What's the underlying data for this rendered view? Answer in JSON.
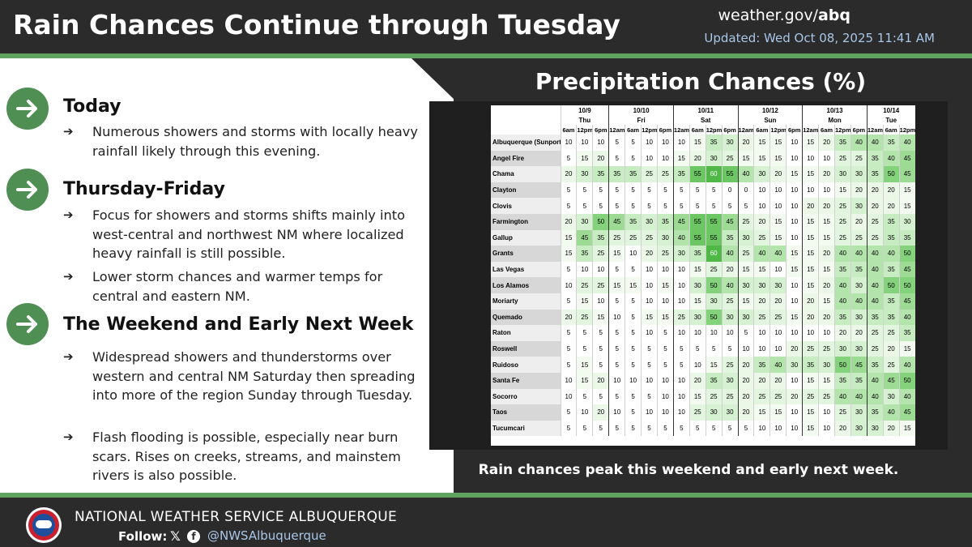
{
  "header": {
    "title": "Rain Chances Continue through Tuesday",
    "site_prefix": "weather.gov/",
    "site_bold": "abq",
    "updated": "Updated: Wed Oct 08, 2025 11:41 AM"
  },
  "sections": [
    {
      "title": "Today",
      "bullets": [
        "Numerous showers and storms with locally heavy rainfall likely through this evening."
      ]
    },
    {
      "title": "Thursday-Friday",
      "bullets": [
        "Focus for showers and storms shifts mainly into west-central and northwest NM where localized heavy rainfall is still possible.",
        "Lower storm chances and warmer temps for central and eastern NM."
      ]
    },
    {
      "title": "The Weekend and Early Next Week",
      "bullets": [
        "Widespread showers and thunderstorms over western and central NM Saturday then spreading into more of the region Sunday through Tuesday.",
        "Flash flooding is possible, especially near burn scars. Rises on creeks, streams, and mainstem rivers is also possible."
      ]
    }
  ],
  "bullet_arrow": "➔",
  "chart": {
    "title": "Precipitation Chances (%)",
    "caption": "Rain chances peak this weekend and early next week."
  },
  "chart_data": {
    "type": "table",
    "days": [
      {
        "date": "10/9",
        "day": "Thu",
        "times": [
          "6am",
          "12pm",
          "6pm"
        ]
      },
      {
        "date": "10/10",
        "day": "Fri",
        "times": [
          "12am",
          "6am",
          "12pm",
          "6pm"
        ]
      },
      {
        "date": "10/11",
        "day": "Sat",
        "times": [
          "12am",
          "6am",
          "12pm",
          "6pm"
        ]
      },
      {
        "date": "10/12",
        "day": "Sun",
        "times": [
          "12am",
          "6am",
          "12pm",
          "6pm"
        ]
      },
      {
        "date": "10/13",
        "day": "Mon",
        "times": [
          "12am",
          "6am",
          "12pm",
          "6pm"
        ]
      },
      {
        "date": "10/14",
        "day": "Tue",
        "times": [
          "12am",
          "6am",
          "12pm"
        ]
      }
    ],
    "rows": [
      {
        "location": "Albuquerque (Sunport)",
        "values": [
          10,
          10,
          10,
          5,
          5,
          10,
          10,
          10,
          15,
          35,
          30,
          20,
          15,
          15,
          10,
          15,
          20,
          35,
          40,
          40,
          35,
          40
        ]
      },
      {
        "location": "Angel Fire",
        "values": [
          5,
          15,
          20,
          5,
          5,
          10,
          10,
          15,
          20,
          30,
          25,
          15,
          15,
          15,
          10,
          10,
          10,
          25,
          25,
          35,
          40,
          45
        ]
      },
      {
        "location": "Chama",
        "values": [
          20,
          30,
          35,
          35,
          35,
          25,
          25,
          35,
          55,
          60,
          55,
          40,
          30,
          20,
          15,
          15,
          20,
          30,
          30,
          35,
          50,
          45
        ]
      },
      {
        "location": "Clayton",
        "values": [
          5,
          5,
          5,
          5,
          5,
          5,
          5,
          5,
          5,
          5,
          0,
          0,
          10,
          10,
          10,
          10,
          10,
          15,
          20,
          20,
          20,
          15
        ]
      },
      {
        "location": "Clovis",
        "values": [
          5,
          5,
          5,
          5,
          5,
          5,
          5,
          5,
          5,
          5,
          5,
          5,
          10,
          10,
          10,
          20,
          20,
          25,
          30,
          20,
          20,
          15
        ]
      },
      {
        "location": "Farmington",
        "values": [
          20,
          30,
          50,
          45,
          35,
          30,
          35,
          45,
          55,
          55,
          45,
          25,
          20,
          15,
          10,
          15,
          15,
          25,
          20,
          25,
          35,
          30
        ]
      },
      {
        "location": "Gallup",
        "values": [
          15,
          45,
          35,
          25,
          25,
          25,
          30,
          40,
          55,
          55,
          35,
          30,
          25,
          15,
          10,
          15,
          15,
          25,
          25,
          25,
          35,
          35
        ]
      },
      {
        "location": "Grants",
        "values": [
          15,
          35,
          25,
          15,
          10,
          20,
          25,
          30,
          35,
          60,
          40,
          25,
          40,
          40,
          15,
          15,
          20,
          40,
          40,
          40,
          40,
          50
        ]
      },
      {
        "location": "Las Vegas",
        "values": [
          5,
          10,
          10,
          5,
          5,
          10,
          10,
          10,
          15,
          25,
          20,
          15,
          15,
          10,
          15,
          15,
          15,
          35,
          35,
          40,
          35,
          45
        ]
      },
      {
        "location": "Los Alamos",
        "values": [
          10,
          25,
          25,
          15,
          15,
          10,
          15,
          10,
          30,
          50,
          40,
          30,
          30,
          30,
          10,
          15,
          20,
          40,
          30,
          40,
          50,
          50
        ]
      },
      {
        "location": "Moriarty",
        "values": [
          5,
          15,
          10,
          5,
          5,
          10,
          10,
          10,
          15,
          30,
          25,
          15,
          20,
          20,
          10,
          20,
          15,
          40,
          40,
          40,
          35,
          45
        ]
      },
      {
        "location": "Quemado",
        "values": [
          20,
          25,
          15,
          10,
          5,
          15,
          15,
          25,
          30,
          50,
          30,
          30,
          25,
          25,
          15,
          20,
          20,
          35,
          30,
          35,
          35,
          40
        ]
      },
      {
        "location": "Raton",
        "values": [
          5,
          5,
          5,
          5,
          5,
          10,
          5,
          10,
          10,
          10,
          10,
          5,
          10,
          10,
          10,
          10,
          10,
          20,
          20,
          25,
          25,
          35
        ]
      },
      {
        "location": "Roswell",
        "values": [
          5,
          5,
          5,
          5,
          5,
          5,
          5,
          5,
          5,
          5,
          5,
          10,
          10,
          10,
          20,
          25,
          25,
          30,
          30,
          25,
          20,
          15
        ]
      },
      {
        "location": "Ruidoso",
        "values": [
          5,
          15,
          5,
          5,
          5,
          5,
          5,
          5,
          10,
          15,
          25,
          20,
          35,
          40,
          30,
          35,
          30,
          50,
          45,
          35,
          25,
          40
        ]
      },
      {
        "location": "Santa Fe",
        "values": [
          10,
          15,
          20,
          10,
          10,
          10,
          10,
          10,
          20,
          35,
          30,
          20,
          20,
          20,
          10,
          15,
          15,
          35,
          35,
          40,
          45,
          50
        ]
      },
      {
        "location": "Socorro",
        "values": [
          10,
          5,
          5,
          5,
          5,
          5,
          10,
          10,
          15,
          25,
          25,
          20,
          25,
          25,
          20,
          25,
          25,
          40,
          40,
          40,
          30,
          40
        ]
      },
      {
        "location": "Taos",
        "values": [
          5,
          10,
          20,
          10,
          5,
          10,
          10,
          10,
          25,
          30,
          30,
          20,
          15,
          15,
          10,
          15,
          10,
          25,
          30,
          35,
          40,
          45
        ]
      },
      {
        "location": "Tucumcari",
        "values": [
          5,
          5,
          5,
          5,
          5,
          5,
          5,
          5,
          5,
          5,
          5,
          5,
          10,
          10,
          10,
          15,
          10,
          20,
          30,
          30,
          20,
          15
        ]
      }
    ]
  },
  "footer": {
    "org": "NATIONAL WEATHER SERVICE ALBUQUERQUE",
    "follow": "Follow:",
    "x_glyph": "𝕏",
    "fb_glyph": "f",
    "handle": "@NWSAlbuquerque"
  },
  "colors": {
    "accent_green": "#5fa35e",
    "icon_green": "#4f8f53",
    "updated_blue": "#a9c6e6",
    "background": "#2b2b2b"
  }
}
